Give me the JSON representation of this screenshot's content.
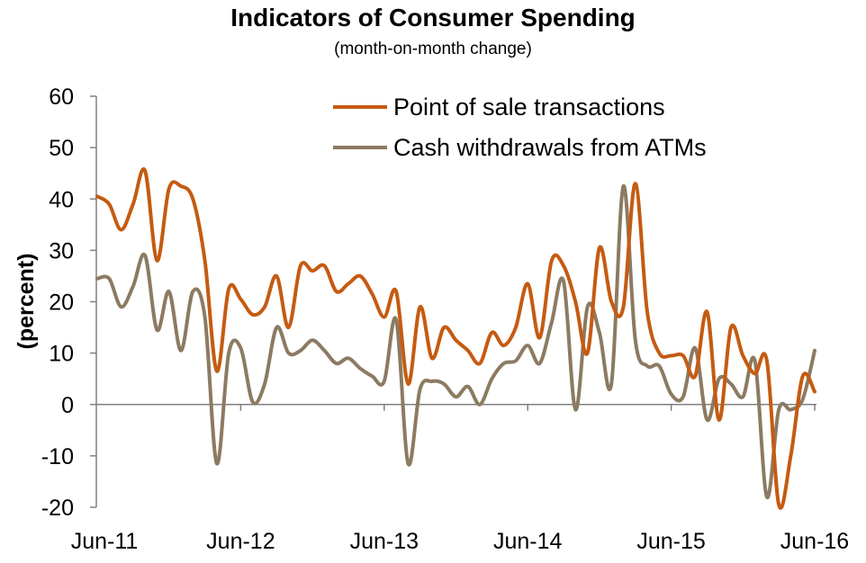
{
  "chart_data": {
    "type": "line",
    "title": "Indicators of Consumer Spending",
    "subtitle": "(month-on-month change)",
    "xlabel": "",
    "ylabel": "(percent)",
    "ylim": [
      -20,
      60
    ],
    "yticks": [
      60,
      50,
      40,
      30,
      20,
      10,
      0,
      -10,
      -20
    ],
    "xticks": [
      "Jun-11",
      "Jun-12",
      "Jun-13",
      "Jun-14",
      "Jun-15",
      "Jun-16"
    ],
    "x": [
      "Jun-11",
      "Jul-11",
      "Aug-11",
      "Sep-11",
      "Oct-11",
      "Nov-11",
      "Dec-11",
      "Jan-12",
      "Feb-12",
      "Mar-12",
      "Apr-12",
      "May-12",
      "Jun-12",
      "Jul-12",
      "Aug-12",
      "Sep-12",
      "Oct-12",
      "Nov-12",
      "Dec-12",
      "Jan-13",
      "Feb-13",
      "Mar-13",
      "Apr-13",
      "May-13",
      "Jun-13",
      "Jul-13",
      "Aug-13",
      "Sep-13",
      "Oct-13",
      "Nov-13",
      "Dec-13",
      "Jan-14",
      "Feb-14",
      "Mar-14",
      "Apr-14",
      "May-14",
      "Jun-14",
      "Jul-14",
      "Aug-14",
      "Sep-14",
      "Oct-14",
      "Nov-14",
      "Dec-14",
      "Jan-15",
      "Feb-15",
      "Mar-15",
      "Apr-15",
      "May-15",
      "Jun-15",
      "Jul-15",
      "Aug-15",
      "Sep-15",
      "Oct-15",
      "Nov-15",
      "Dec-15",
      "Jan-16",
      "Feb-16",
      "Mar-16",
      "Apr-16",
      "May-16",
      "Jun-16"
    ],
    "grid": false,
    "legend": "top-right",
    "series": [
      {
        "name": "Point of sale transactions",
        "color": "#c55a11",
        "values": [
          40.5,
          39,
          34,
          39,
          45.5,
          28,
          42,
          42.5,
          40,
          28,
          6.5,
          22.5,
          20.5,
          17.5,
          19,
          25,
          15,
          27,
          26,
          27,
          22,
          23.5,
          25,
          21.5,
          17,
          22,
          4,
          19,
          9,
          15,
          12.5,
          10.5,
          8,
          14,
          11.5,
          15,
          23.5,
          13,
          28,
          27,
          20,
          10,
          30.5,
          20,
          19,
          43,
          18,
          10,
          9.5,
          9.5,
          5.5,
          18,
          -3,
          15,
          9.5,
          6,
          8.5,
          -19.5,
          -10,
          5.5,
          2.5
        ]
      },
      {
        "name": "Cash withdrawals from ATMs",
        "color": "#8c7b62",
        "values": [
          24.5,
          24.5,
          19,
          23,
          29,
          14.5,
          22,
          10.5,
          22,
          17,
          -11.5,
          10,
          11,
          0.5,
          4,
          15,
          10,
          10.5,
          12.5,
          10.5,
          8,
          9,
          7,
          5.5,
          4.5,
          16.5,
          -11.5,
          3,
          4.5,
          4,
          1.5,
          3.5,
          0,
          5,
          8,
          8.5,
          11.5,
          8,
          16,
          24,
          -1,
          19,
          14,
          4,
          42.5,
          12.5,
          7.5,
          7.5,
          2,
          1.5,
          11,
          -3,
          5,
          4,
          1.5,
          8.5,
          -18,
          -1,
          -1,
          1,
          10.5
        ]
      }
    ]
  }
}
